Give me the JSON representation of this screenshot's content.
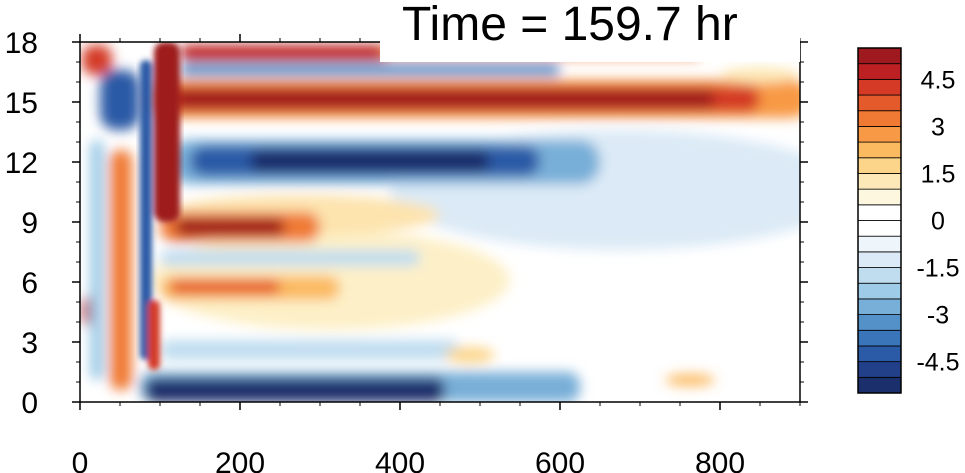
{
  "chart_data": {
    "type": "heatmap",
    "title": "Time = 159.7 hr",
    "xlabel": "",
    "ylabel": "",
    "xlim": [
      0,
      900
    ],
    "ylim": [
      0,
      18
    ],
    "x_ticks": [
      "0",
      "200",
      "400",
      "600",
      "800"
    ],
    "y_ticks": [
      "0",
      "3",
      "6",
      "9",
      "12",
      "15",
      "18"
    ],
    "colorbar": {
      "ticks": [
        "4.5",
        "3",
        "1.5",
        "0",
        "-1.5",
        "-3",
        "-4.5"
      ],
      "levels": [
        -5.5,
        -5,
        -4.5,
        -4,
        -3.5,
        -3,
        -2.5,
        -2,
        -1.5,
        -1,
        -0.5,
        0,
        0.5,
        1,
        1.5,
        2,
        2.5,
        3,
        3.5,
        4,
        4.5,
        5,
        5.5
      ],
      "colors": [
        "#1a2f6b",
        "#223f8a",
        "#2b5aa6",
        "#3a74b9",
        "#5591c9",
        "#78afd8",
        "#9ecbe7",
        "#c0ddf0",
        "#dbeaf6",
        "#eef5fb",
        "#ffffff",
        "#ffffff",
        "#fdf7e0",
        "#fde9b8",
        "#fcd58a",
        "#fbb960",
        "#f89a45",
        "#f07a34",
        "#e55a2b",
        "#d43a26",
        "#bd2023",
        "#9e1a1f"
      ]
    },
    "features": [
      {
        "name": "upper-positive-band",
        "y": 15.3,
        "x": [
          110,
          810
        ],
        "value": 5.5
      },
      {
        "name": "upper-negative-band",
        "y": 11.8,
        "x": [
          150,
          560
        ],
        "value": -5.5
      },
      {
        "name": "mid-positive-band",
        "y": 8.8,
        "x": [
          120,
          300
        ],
        "value": 5.0
      },
      {
        "name": "lower-positive-band",
        "y": 5.8,
        "x": [
          120,
          330
        ],
        "value": 3.5
      },
      {
        "name": "bottom-negative-band",
        "y": 0.6,
        "x": [
          80,
          480
        ],
        "value": -5.5
      }
    ]
  }
}
